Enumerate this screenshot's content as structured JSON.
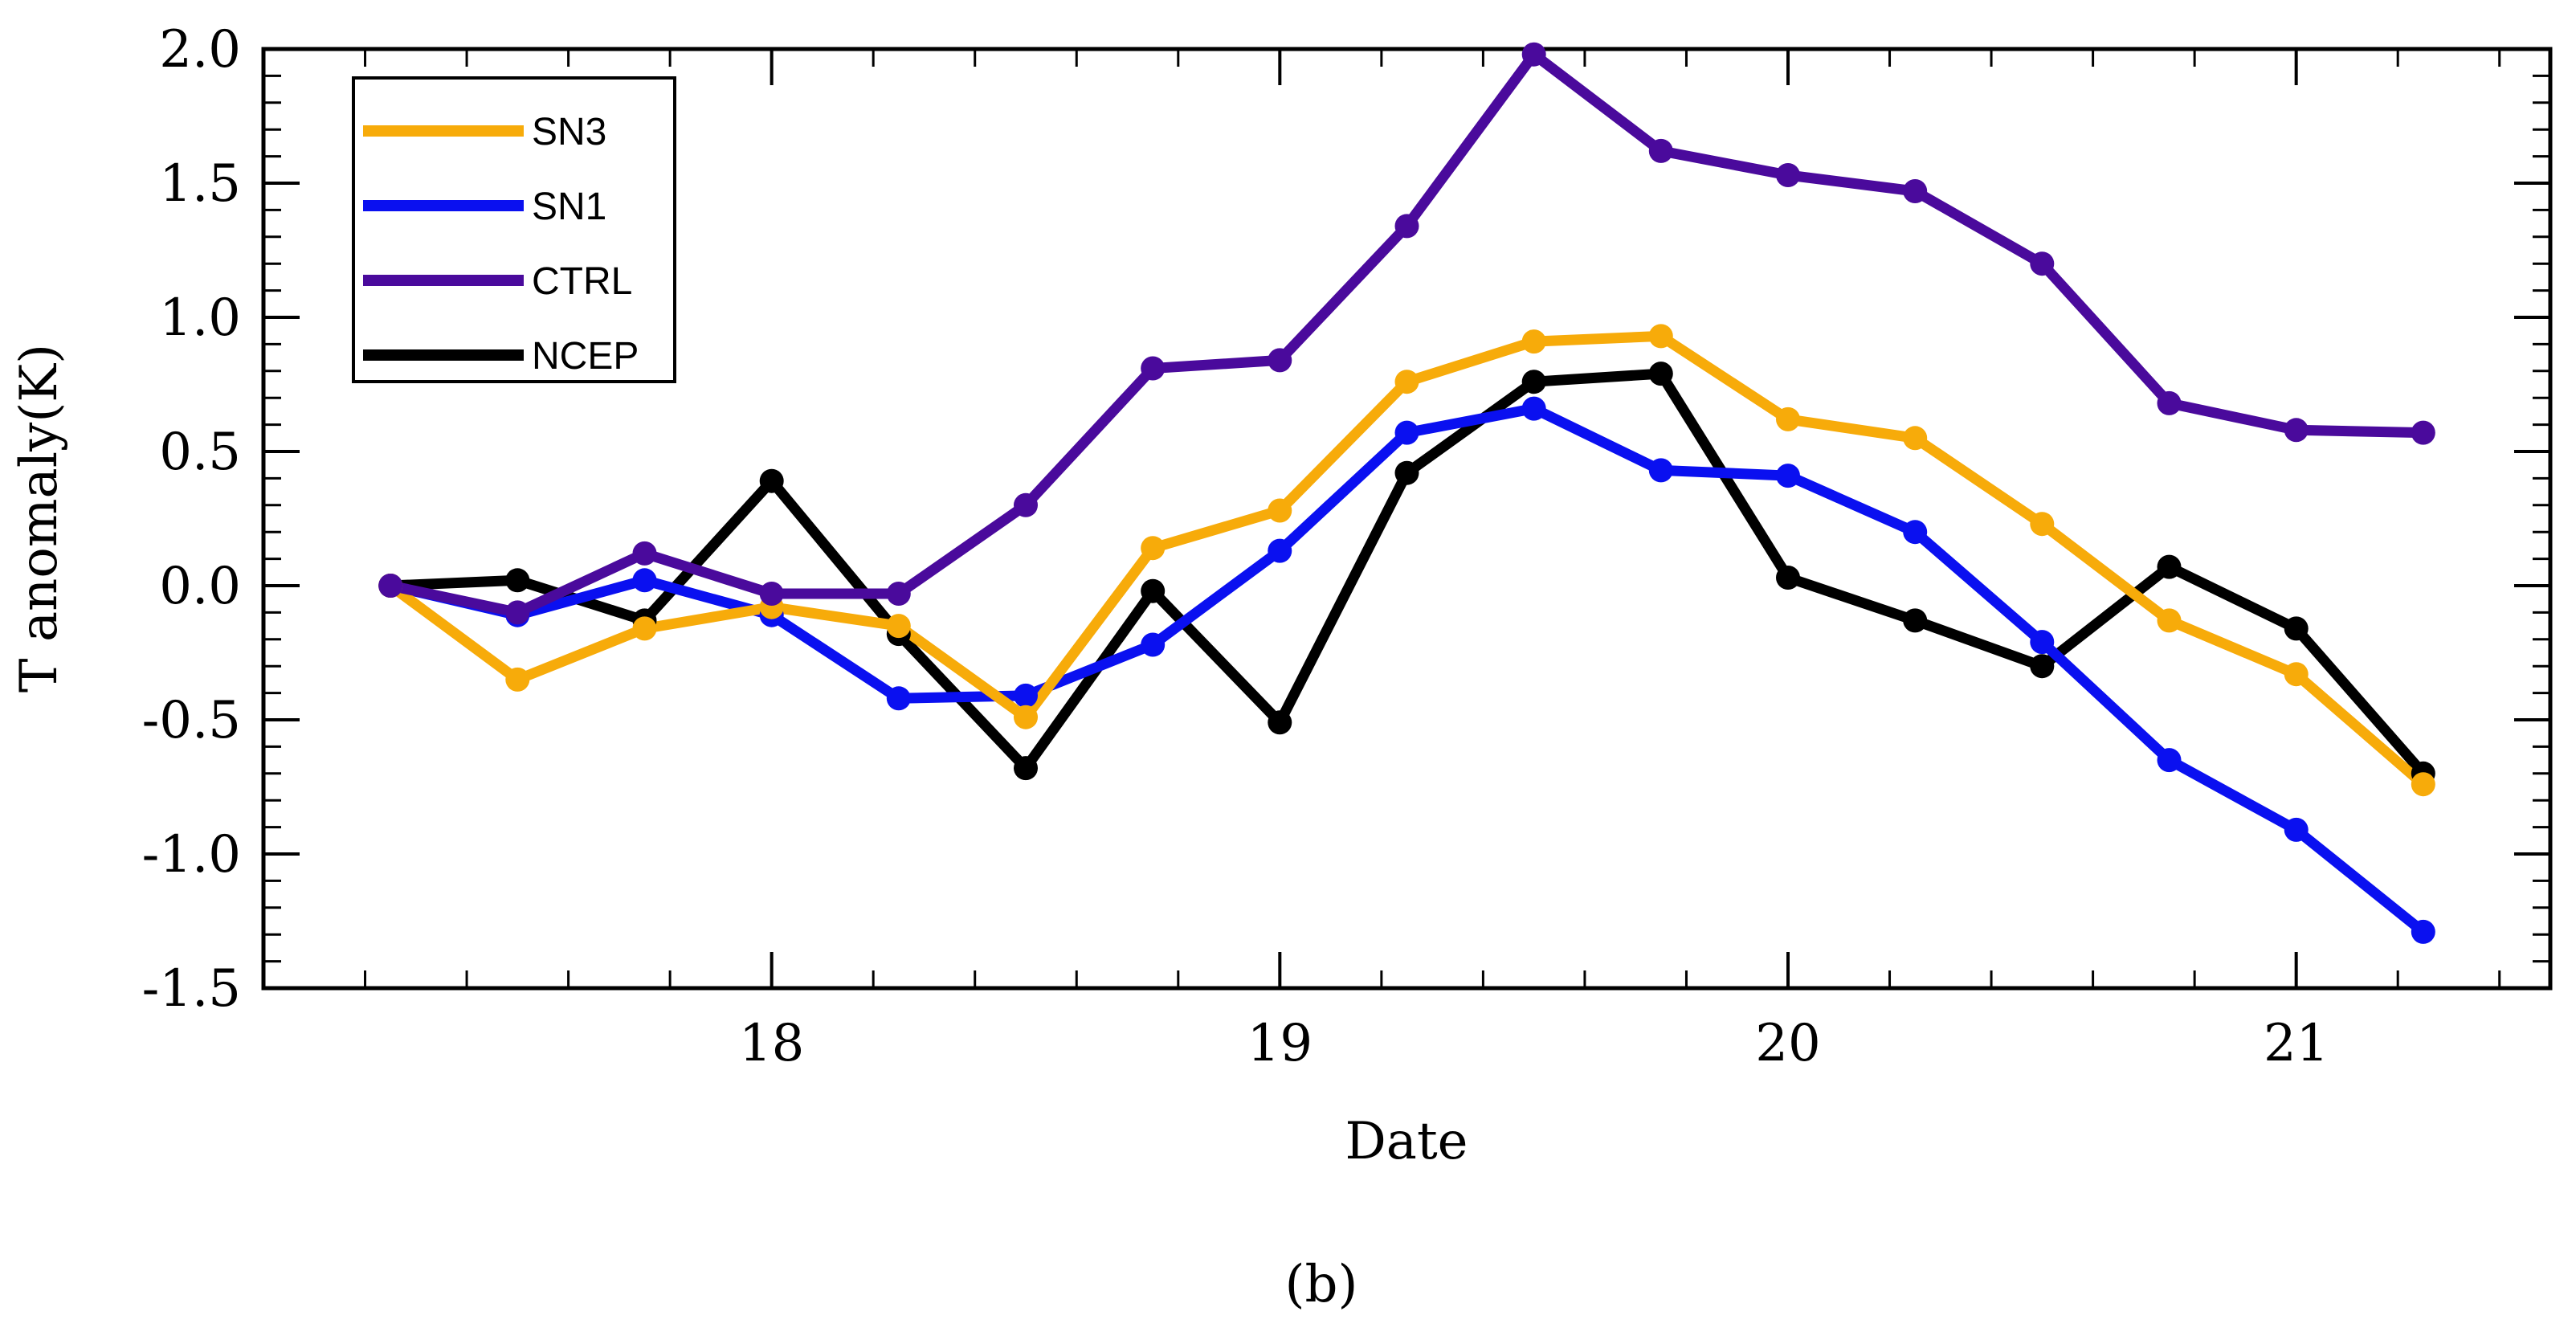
{
  "chart_data": {
    "type": "line",
    "title": "",
    "xlabel": "Date",
    "ylabel": "T anomaly(K)",
    "caption": "(b)",
    "xlim": [
      17.0,
      21.5
    ],
    "ylim": [
      -1.5,
      2.0
    ],
    "xticks": [
      18,
      19,
      20,
      21
    ],
    "xtick_labels": [
      "18",
      "19",
      "20",
      "21"
    ],
    "yticks": [
      2.0,
      1.5,
      1.0,
      0.5,
      0.0,
      -0.5,
      -1.0,
      -1.5
    ],
    "ytick_labels": [
      "2.0",
      "1.5",
      "1.0",
      "0.5",
      "0.0",
      "-0.5",
      "-1.0",
      "-1.5"
    ],
    "legend_position": "top-left",
    "x": [
      17.25,
      17.5,
      17.75,
      18.0,
      18.25,
      18.5,
      18.75,
      19.0,
      19.25,
      19.5,
      19.75,
      20.0,
      20.25,
      20.5,
      20.75,
      21.0,
      21.25
    ],
    "series": [
      {
        "name": "NCEP",
        "color": "#000000",
        "values": [
          0.0,
          0.02,
          -0.13,
          0.39,
          -0.18,
          -0.68,
          -0.02,
          -0.51,
          0.42,
          0.76,
          0.79,
          0.03,
          -0.13,
          -0.3,
          0.07,
          -0.16,
          -0.7
        ]
      },
      {
        "name": "SN1",
        "color": "#0a10f0",
        "values": [
          0.0,
          -0.11,
          0.02,
          -0.11,
          -0.42,
          -0.41,
          -0.22,
          0.13,
          0.57,
          0.66,
          0.43,
          0.41,
          0.2,
          -0.21,
          -0.65,
          -0.91,
          -1.29
        ]
      },
      {
        "name": "SN3",
        "color": "#f7ab0a",
        "values": [
          0.0,
          -0.35,
          -0.16,
          -0.08,
          -0.15,
          -0.49,
          0.14,
          0.28,
          0.76,
          0.91,
          0.93,
          0.62,
          0.55,
          0.23,
          -0.13,
          -0.33,
          -0.74
        ]
      },
      {
        "name": "CTRL",
        "color": "#4a0a9c",
        "values": [
          0.0,
          -0.1,
          0.12,
          -0.03,
          -0.03,
          0.3,
          0.81,
          0.84,
          1.34,
          1.98,
          1.62,
          1.53,
          1.47,
          1.2,
          0.68,
          0.58,
          0.57
        ]
      }
    ],
    "legend_order": [
      "SN3",
      "SN1",
      "CTRL",
      "NCEP"
    ]
  }
}
